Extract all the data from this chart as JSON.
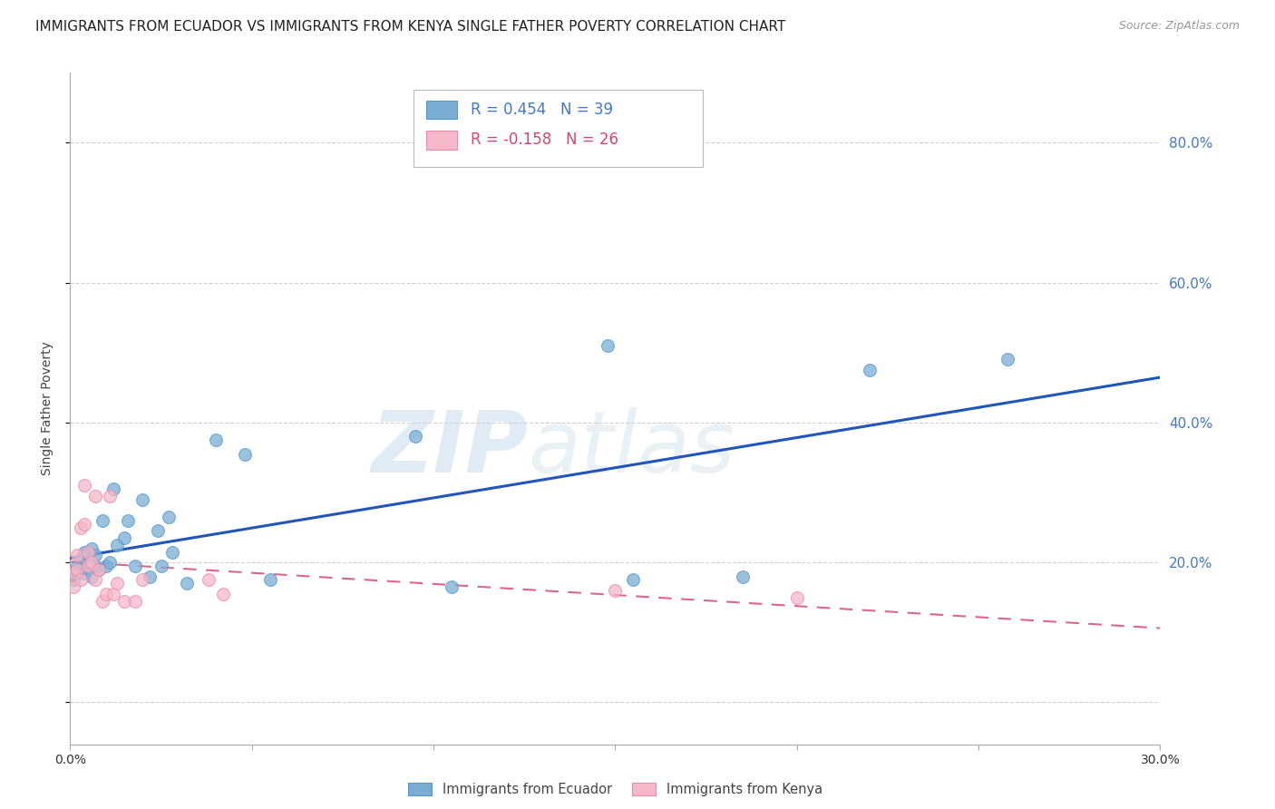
{
  "title": "IMMIGRANTS FROM ECUADOR VS IMMIGRANTS FROM KENYA SINGLE FATHER POVERTY CORRELATION CHART",
  "source": "Source: ZipAtlas.com",
  "ylabel": "Single Father Poverty",
  "y_tick_labels_right": [
    "20.0%",
    "40.0%",
    "60.0%",
    "80.0%"
  ],
  "xlim": [
    0.0,
    0.3
  ],
  "ylim": [
    -0.06,
    0.9
  ],
  "legend_ecuador": "Immigrants from Ecuador",
  "legend_kenya": "Immigrants from Kenya",
  "ecuador_R": "R = 0.454",
  "ecuador_N": "N = 39",
  "kenya_R": "R = -0.158",
  "kenya_N": "N = 26",
  "ecuador_color": "#7aadd4",
  "ecuador_edge": "#5599cc",
  "kenya_color": "#f5b8c8",
  "kenya_edge": "#ee88aa",
  "trendline_ecuador_color": "#2255bb",
  "trendline_kenya_color": "#dd6688",
  "watermark_zip": "ZIP",
  "watermark_atlas": "atlas",
  "ecuador_x": [
    0.001,
    0.002,
    0.002,
    0.003,
    0.003,
    0.004,
    0.004,
    0.005,
    0.005,
    0.006,
    0.006,
    0.007,
    0.007,
    0.008,
    0.009,
    0.01,
    0.011,
    0.012,
    0.013,
    0.015,
    0.016,
    0.018,
    0.02,
    0.022,
    0.024,
    0.025,
    0.027,
    0.028,
    0.032,
    0.04,
    0.048,
    0.055,
    0.095,
    0.105,
    0.148,
    0.155,
    0.185,
    0.22,
    0.258
  ],
  "ecuador_y": [
    0.175,
    0.185,
    0.195,
    0.19,
    0.205,
    0.185,
    0.215,
    0.195,
    0.21,
    0.18,
    0.22,
    0.195,
    0.21,
    0.19,
    0.26,
    0.195,
    0.2,
    0.305,
    0.225,
    0.235,
    0.26,
    0.195,
    0.29,
    0.18,
    0.245,
    0.195,
    0.265,
    0.215,
    0.17,
    0.375,
    0.355,
    0.175,
    0.38,
    0.165,
    0.51,
    0.175,
    0.18,
    0.475,
    0.49
  ],
  "kenya_x": [
    0.001,
    0.001,
    0.002,
    0.002,
    0.003,
    0.003,
    0.004,
    0.004,
    0.005,
    0.005,
    0.006,
    0.007,
    0.007,
    0.008,
    0.009,
    0.01,
    0.011,
    0.012,
    0.013,
    0.015,
    0.018,
    0.02,
    0.038,
    0.042,
    0.15,
    0.2
  ],
  "kenya_y": [
    0.165,
    0.185,
    0.19,
    0.21,
    0.25,
    0.175,
    0.255,
    0.31,
    0.195,
    0.215,
    0.2,
    0.175,
    0.295,
    0.19,
    0.145,
    0.155,
    0.295,
    0.155,
    0.17,
    0.145,
    0.145,
    0.175,
    0.175,
    0.155,
    0.16,
    0.15
  ],
  "background_color": "#ffffff",
  "grid_color": "#cccccc",
  "right_tick_color": "#4477cc",
  "title_fontsize": 11,
  "label_fontsize": 10,
  "tick_fontsize": 10
}
